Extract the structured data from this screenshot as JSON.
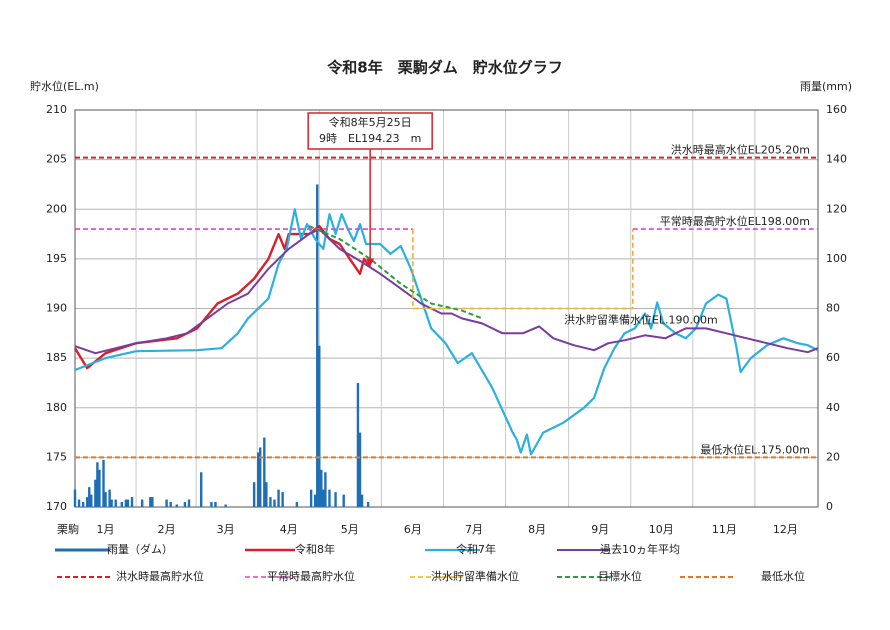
{
  "chart_data": {
    "type": "line",
    "title": "令和8年　栗駒ダム　貯水位グラフ",
    "y_label": "貯水位(EL.m)",
    "y2_label": "雨量(mm)",
    "x_label": "栗駒",
    "xlim": [
      0,
      365
    ],
    "xticks": [
      {
        "value": 15,
        "label": "1月"
      },
      {
        "value": 45,
        "label": "2月"
      },
      {
        "value": 74,
        "label": "3月"
      },
      {
        "value": 105,
        "label": "4月"
      },
      {
        "value": 135,
        "label": "5月"
      },
      {
        "value": 166,
        "label": "6月"
      },
      {
        "value": 196,
        "label": "7月"
      },
      {
        "value": 227,
        "label": "8月"
      },
      {
        "value": 258,
        "label": "9月"
      },
      {
        "value": 288,
        "label": "10月"
      },
      {
        "value": 319,
        "label": "11月"
      },
      {
        "value": 349,
        "label": "12月"
      }
    ],
    "ylim": [
      170,
      210
    ],
    "yticks": [
      170,
      175,
      180,
      185,
      190,
      195,
      200,
      205,
      210
    ],
    "y2lim": [
      0,
      160
    ],
    "y2ticks": [
      0,
      20,
      40,
      60,
      80,
      100,
      120,
      140,
      160
    ],
    "grid": true,
    "annotation": {
      "lines": [
        "令和8年5月25日",
        "9時　EL194.23　m"
      ],
      "x": 145,
      "y": 194.23
    },
    "series": [
      {
        "name": "雨量（ダム）",
        "type": "bar",
        "axis": "y2",
        "color": "#1f6fb4",
        "x": [
          0,
          2,
          4,
          6,
          7,
          8,
          10,
          11,
          12,
          14,
          15,
          17,
          18,
          20,
          23,
          25,
          26,
          28,
          33,
          37,
          38,
          45,
          47,
          50,
          54,
          56,
          62,
          67,
          69,
          74,
          88,
          90,
          91,
          93,
          94,
          96,
          98,
          100,
          102,
          109,
          116,
          118,
          119,
          120,
          121,
          122,
          123,
          125,
          128,
          132,
          139,
          140,
          141,
          144
        ],
        "values": [
          7,
          3,
          2,
          4,
          8,
          5,
          11,
          18,
          15,
          19,
          6,
          7,
          3,
          3,
          2,
          3,
          3,
          4,
          3,
          4,
          4,
          3,
          2,
          1,
          2,
          3,
          14,
          2,
          2,
          1,
          10,
          22,
          24,
          28,
          10,
          4,
          3,
          7,
          6,
          2,
          7,
          5,
          130,
          65,
          15,
          7,
          14,
          7,
          6,
          5,
          50,
          30,
          5,
          2
        ]
      },
      {
        "name": "令和8年",
        "type": "line",
        "color": "#d9202a",
        "width": 2.4,
        "x": [
          0,
          6,
          15,
          30,
          50,
          60,
          70,
          80,
          88,
          95,
          100,
          103,
          105,
          115,
          120,
          125,
          130,
          135,
          140,
          142,
          145
        ],
        "values": [
          186,
          184,
          185.5,
          186.5,
          187,
          188,
          190.5,
          191.5,
          193,
          195,
          197.5,
          196,
          197.5,
          197.5,
          198.3,
          197,
          196.5,
          195,
          193.5,
          195,
          194.2
        ]
      },
      {
        "name": "令和7年",
        "type": "line",
        "color": "#2bb0e0",
        "width": 2.2,
        "x": [
          0,
          15,
          30,
          60,
          72,
          80,
          85,
          95,
          100,
          104,
          108,
          111,
          114,
          118,
          122,
          125,
          128,
          131,
          134,
          137,
          140,
          143,
          150,
          155,
          160,
          165,
          170,
          175,
          182,
          188,
          195,
          205,
          215,
          217,
          219,
          222,
          224,
          230,
          240,
          250,
          255,
          260,
          265,
          270,
          275,
          280,
          283,
          286,
          289,
          295,
          300,
          305,
          310,
          316,
          320,
          325,
          327,
          332,
          340,
          348,
          355,
          360,
          365
        ],
        "values": [
          183.8,
          185,
          185.7,
          185.8,
          186,
          187.5,
          189,
          191,
          194.5,
          196,
          200,
          197,
          198.5,
          197,
          196,
          199.5,
          197.5,
          199.5,
          198,
          196.8,
          198.5,
          196.5,
          196.5,
          195.5,
          196.3,
          194,
          191,
          188,
          186.5,
          184.5,
          185.5,
          182,
          177.5,
          176.8,
          175.5,
          177.3,
          175.3,
          177.5,
          178.5,
          180,
          181,
          184,
          186,
          187.5,
          188,
          189.5,
          188,
          190.6,
          188.5,
          187.5,
          187,
          188,
          190.5,
          191.4,
          191,
          186,
          183.6,
          185,
          186.3,
          187,
          186.5,
          186.3,
          185.8
        ]
      },
      {
        "name": "過去10ヵ年平均",
        "type": "line",
        "color": "#7a3c9c",
        "width": 2,
        "x": [
          0,
          10,
          20,
          30,
          45,
          55,
          65,
          75,
          85,
          95,
          105,
          115,
          120,
          125,
          130,
          140,
          150,
          160,
          170,
          180,
          185,
          190,
          200,
          210,
          220,
          228,
          235,
          245,
          255,
          262,
          270,
          280,
          290,
          300,
          310,
          320,
          330,
          340,
          350,
          360,
          365
        ],
        "values": [
          186.2,
          185.5,
          186,
          186.5,
          187,
          187.5,
          189,
          190.5,
          191.5,
          194,
          196,
          197.5,
          198,
          197,
          196,
          194.8,
          193.5,
          192,
          190.5,
          189.5,
          189.5,
          189,
          188.5,
          187.5,
          187.5,
          188.2,
          187,
          186.3,
          185.8,
          186.5,
          186.8,
          187.3,
          187,
          188,
          188,
          187.5,
          187,
          186.5,
          186,
          185.6,
          186
        ]
      },
      {
        "name": "洪水時最高貯水位",
        "type": "line",
        "color": "#d9202a",
        "dashed": true,
        "width": 2,
        "label": "洪水時最高水位EL205.20m",
        "x": [
          0,
          365
        ],
        "values": [
          205.2,
          205.2
        ]
      },
      {
        "name": "平常時最高貯水位",
        "type": "line",
        "color": "#e83fd0",
        "dashed": true,
        "width": 1.6,
        "label": "平常時最高貯水位EL198.00m",
        "x": [
          0,
          166,
          220,
          274,
          365
        ],
        "values": [
          198,
          198,
          null,
          198,
          198
        ]
      },
      {
        "name": "洪水貯留準備水位",
        "type": "line",
        "color": "#f2b01e",
        "dashed": true,
        "width": 1.6,
        "label": "洪水貯留準備水位EL.190.00m",
        "label_position": "below",
        "x": [
          166,
          166,
          274,
          274
        ],
        "values": [
          198,
          190,
          190,
          198
        ]
      },
      {
        "name": "目標水位",
        "type": "line",
        "color": "#2a9d3c",
        "dashed": true,
        "width": 2,
        "x": [
          115,
          130,
          145,
          160,
          175,
          190,
          200
        ],
        "values": [
          198.3,
          197,
          195,
          192.5,
          190.5,
          189.8,
          189
        ]
      },
      {
        "name": "最低水位",
        "type": "line",
        "color": "#e07a2a",
        "dashed": true,
        "width": 2,
        "label": "最低水位EL.175.00m",
        "x": [
          0,
          365
        ],
        "values": [
          175,
          175
        ]
      }
    ]
  }
}
